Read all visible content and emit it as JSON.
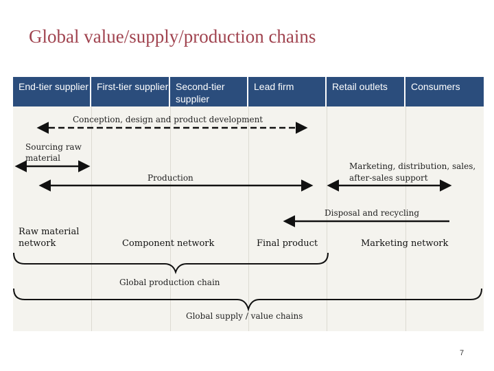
{
  "slide": {
    "title": "Global value/supply/production chains",
    "page_number": "7"
  },
  "header": {
    "columns": [
      "End-tier supplier",
      "First-tier supplier",
      "Second-tier supplier",
      "Lead firm",
      "Retail outlets",
      "Consumers"
    ]
  },
  "activities": {
    "conception": "Conception, design and product development",
    "sourcing_line1": "Sourcing raw",
    "sourcing_line2": "material",
    "production": "Production",
    "marketing_line1": "Marketing, distribution, sales,",
    "marketing_line2": "after-sales support",
    "disposal": "Disposal and recycling"
  },
  "networks": {
    "raw_line1": "Raw material",
    "raw_line2": "network",
    "component": "Component network",
    "final": "Final product",
    "marketing": "Marketing network"
  },
  "chains": {
    "production_chain": "Global production chain",
    "supply_value_chain": "Global supply / value chains"
  },
  "colors": {
    "title": "#a0434f",
    "header_bg": "#2b4d7c",
    "header_text": "#ffffff",
    "panel_bg": "#f4f3ee",
    "arrow": "#111111"
  }
}
